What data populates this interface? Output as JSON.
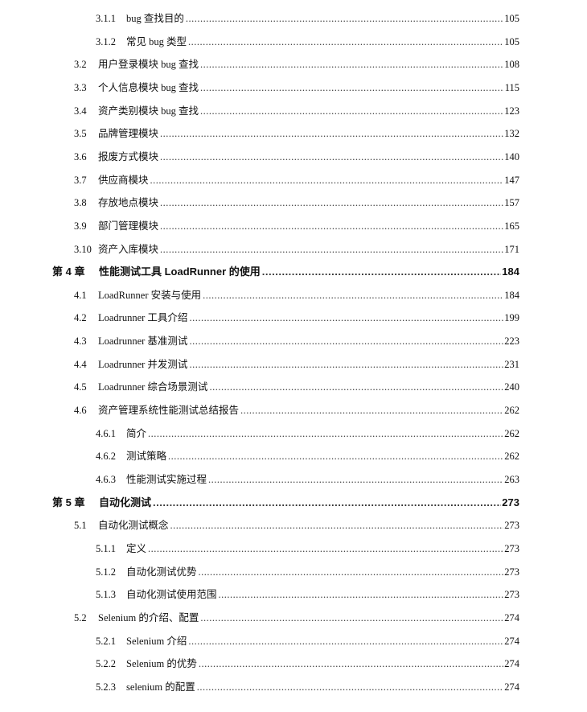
{
  "toc": [
    {
      "level": 3,
      "num": "3.1.1",
      "title": "bug 查找目的",
      "page": "105"
    },
    {
      "level": 3,
      "num": "3.1.2",
      "title": "常见 bug 类型",
      "page": "105"
    },
    {
      "level": 2,
      "num": "3.2",
      "title": "用户登录模块 bug 查找",
      "page": "108"
    },
    {
      "level": 2,
      "num": "3.3",
      "title": "个人信息模块 bug 查找",
      "page": "115"
    },
    {
      "level": 2,
      "num": "3.4",
      "title": "资产类别模块 bug 查找",
      "page": "123"
    },
    {
      "level": 2,
      "num": "3.5",
      "title": "品牌管理模块",
      "page": "132"
    },
    {
      "level": 2,
      "num": "3.6",
      "title": "报废方式模块",
      "page": "140"
    },
    {
      "level": 2,
      "num": "3.7",
      "title": "供应商模块",
      "page": "147"
    },
    {
      "level": 2,
      "num": "3.8",
      "title": "存放地点模块",
      "page": "157"
    },
    {
      "level": 2,
      "num": "3.9",
      "title": "部门管理模块",
      "page": "165"
    },
    {
      "level": 2,
      "num": "3.10",
      "title": "资产入库模块",
      "page": "171"
    },
    {
      "level": 1,
      "num": "第 4 章",
      "title": "性能测试工具 LoadRunner 的使用",
      "page": "184"
    },
    {
      "level": 2,
      "num": "4.1",
      "title": "LoadRunner 安装与使用",
      "page": "184"
    },
    {
      "level": 2,
      "num": "4.2",
      "title": "Loadrunner 工具介绍",
      "page": "199"
    },
    {
      "level": 2,
      "num": "4.3",
      "title": "Loadrunner 基准测试",
      "page": "223"
    },
    {
      "level": 2,
      "num": "4.4",
      "title": "Loadrunner 并发测试",
      "page": "231"
    },
    {
      "level": 2,
      "num": "4.5",
      "title": "Loadrunner 综合场景测试",
      "page": "240"
    },
    {
      "level": 2,
      "num": "4.6",
      "title": "资产管理系统性能测试总结报告",
      "page": "262"
    },
    {
      "level": 3,
      "num": "4.6.1",
      "title": "简介",
      "page": "262"
    },
    {
      "level": 3,
      "num": "4.6.2",
      "title": "测试策略",
      "page": "262"
    },
    {
      "level": 3,
      "num": "4.6.3",
      "title": "性能测试实施过程",
      "page": "263"
    },
    {
      "level": 1,
      "num": "第 5 章",
      "title": "自动化测试",
      "page": "273"
    },
    {
      "level": 2,
      "num": "5.1",
      "title": "自动化测试概念",
      "page": "273"
    },
    {
      "level": 3,
      "num": "5.1.1",
      "title": "定义",
      "page": "273"
    },
    {
      "level": 3,
      "num": "5.1.2",
      "title": "自动化测试优势",
      "page": "273"
    },
    {
      "level": 3,
      "num": "5.1.3",
      "title": "自动化测试使用范围",
      "page": "273"
    },
    {
      "level": 2,
      "num": "5.2",
      "title": "Selenium 的介绍、配置",
      "page": "274"
    },
    {
      "level": 3,
      "num": "5.2.1",
      "title": "Selenium 介绍",
      "page": "274"
    },
    {
      "level": 3,
      "num": "5.2.2",
      "title": "Selenium 的优势",
      "page": "274"
    },
    {
      "level": 3,
      "num": "5.2.3",
      "title": "selenium 的配置",
      "page": "274"
    }
  ]
}
